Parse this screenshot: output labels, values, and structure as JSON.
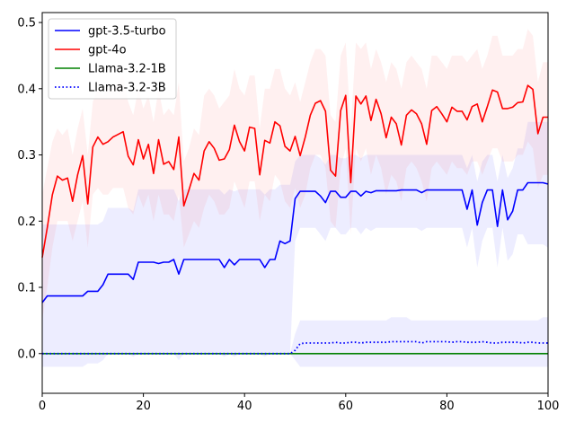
{
  "chart_data": {
    "type": "line",
    "title": "",
    "xlabel": "",
    "ylabel": "",
    "xlim": [
      0,
      100
    ],
    "ylim": [
      -0.06,
      0.515
    ],
    "xticks": [
      0,
      20,
      40,
      60,
      80,
      100
    ],
    "yticks": [
      0.0,
      0.1,
      0.2,
      0.3,
      0.4,
      0.5
    ],
    "xtick_labels": [
      "0",
      "20",
      "40",
      "60",
      "80",
      "100"
    ],
    "ytick_labels": [
      "0.0",
      "0.1",
      "0.2",
      "0.3",
      "0.4",
      "0.5"
    ],
    "grid": false,
    "legend_position": "top-left",
    "x": [
      0,
      1,
      2,
      3,
      4,
      5,
      6,
      7,
      8,
      9,
      10,
      11,
      12,
      13,
      14,
      15,
      16,
      17,
      18,
      19,
      20,
      21,
      22,
      23,
      24,
      25,
      26,
      27,
      28,
      29,
      30,
      31,
      32,
      33,
      34,
      35,
      36,
      37,
      38,
      39,
      40,
      41,
      42,
      43,
      44,
      45,
      46,
      47,
      48,
      49,
      50,
      51,
      52,
      53,
      54,
      55,
      56,
      57,
      58,
      59,
      60,
      61,
      62,
      63,
      64,
      65,
      66,
      67,
      68,
      69,
      70,
      71,
      72,
      73,
      74,
      75,
      76,
      77,
      78,
      79,
      80,
      81,
      82,
      83,
      84,
      85,
      86,
      87,
      88,
      89,
      90,
      91,
      92,
      93,
      94,
      95,
      96,
      97,
      98,
      99,
      100
    ],
    "series": [
      {
        "name": "gpt-3.5-turbo",
        "color": "#0000ff",
        "linestyle": "solid",
        "values": [
          0.077,
          0.087,
          0.087,
          0.087,
          0.087,
          0.087,
          0.087,
          0.087,
          0.087,
          0.094,
          0.094,
          0.094,
          0.104,
          0.12,
          0.12,
          0.12,
          0.12,
          0.12,
          0.112,
          0.138,
          0.138,
          0.138,
          0.138,
          0.136,
          0.138,
          0.138,
          0.142,
          0.12,
          0.142,
          0.142,
          0.142,
          0.142,
          0.142,
          0.142,
          0.142,
          0.142,
          0.13,
          0.142,
          0.134,
          0.142,
          0.142,
          0.142,
          0.142,
          0.142,
          0.13,
          0.142,
          0.142,
          0.17,
          0.166,
          0.17,
          0.234,
          0.245,
          0.245,
          0.245,
          0.245,
          0.238,
          0.228,
          0.245,
          0.245,
          0.236,
          0.236,
          0.245,
          0.245,
          0.238,
          0.245,
          0.243,
          0.246,
          0.246,
          0.246,
          0.246,
          0.246,
          0.247,
          0.247,
          0.247,
          0.247,
          0.243,
          0.247,
          0.247,
          0.247,
          0.247,
          0.247,
          0.247,
          0.247,
          0.247,
          0.218,
          0.247,
          0.194,
          0.228,
          0.247,
          0.247,
          0.192,
          0.247,
          0.202,
          0.215,
          0.247,
          0.247,
          0.258,
          0.258,
          0.258,
          0.258,
          0.256
        ],
        "lower": [
          -0.02,
          -0.02,
          -0.02,
          -0.02,
          -0.02,
          -0.02,
          -0.02,
          -0.02,
          -0.02,
          -0.015,
          -0.015,
          -0.015,
          -0.01,
          0.0,
          0.0,
          0.0,
          0.0,
          0.0,
          -0.005,
          0.0,
          0.0,
          0.0,
          0.0,
          0.0,
          0.0,
          0.0,
          0.0,
          -0.01,
          0.0,
          0.0,
          0.0,
          0.0,
          0.0,
          0.0,
          0.0,
          0.0,
          -0.005,
          0.0,
          -0.005,
          0.0,
          0.0,
          0.0,
          0.0,
          0.0,
          -0.005,
          0.0,
          0.0,
          0.0,
          0.0,
          0.0,
          0.17,
          0.19,
          0.19,
          0.19,
          0.19,
          0.18,
          0.17,
          0.19,
          0.19,
          0.18,
          0.18,
          0.19,
          0.19,
          0.18,
          0.19,
          0.185,
          0.19,
          0.19,
          0.19,
          0.19,
          0.19,
          0.19,
          0.19,
          0.19,
          0.19,
          0.185,
          0.19,
          0.19,
          0.19,
          0.19,
          0.19,
          0.19,
          0.19,
          0.19,
          0.16,
          0.19,
          0.13,
          0.17,
          0.19,
          0.19,
          0.13,
          0.19,
          0.14,
          0.15,
          0.18,
          0.18,
          0.165,
          0.165,
          0.165,
          0.165,
          0.16
        ],
        "upper": [
          0.195,
          0.195,
          0.195,
          0.195,
          0.195,
          0.195,
          0.195,
          0.195,
          0.195,
          0.195,
          0.195,
          0.195,
          0.2,
          0.22,
          0.22,
          0.22,
          0.22,
          0.22,
          0.215,
          0.248,
          0.248,
          0.248,
          0.248,
          0.248,
          0.248,
          0.248,
          0.248,
          0.23,
          0.248,
          0.248,
          0.248,
          0.248,
          0.248,
          0.248,
          0.248,
          0.248,
          0.24,
          0.248,
          0.245,
          0.248,
          0.248,
          0.248,
          0.248,
          0.248,
          0.24,
          0.248,
          0.248,
          0.255,
          0.255,
          0.255,
          0.29,
          0.3,
          0.3,
          0.3,
          0.3,
          0.295,
          0.285,
          0.3,
          0.3,
          0.295,
          0.295,
          0.3,
          0.3,
          0.295,
          0.3,
          0.3,
          0.3,
          0.3,
          0.3,
          0.3,
          0.3,
          0.3,
          0.3,
          0.3,
          0.3,
          0.3,
          0.3,
          0.3,
          0.3,
          0.3,
          0.3,
          0.3,
          0.3,
          0.3,
          0.28,
          0.3,
          0.26,
          0.29,
          0.3,
          0.3,
          0.26,
          0.3,
          0.265,
          0.28,
          0.31,
          0.31,
          0.35,
          0.35,
          0.35,
          0.35,
          0.35
        ]
      },
      {
        "name": "gpt-4o",
        "color": "#ff0000",
        "linestyle": "solid",
        "values": [
          0.145,
          0.19,
          0.24,
          0.268,
          0.262,
          0.265,
          0.23,
          0.27,
          0.299,
          0.226,
          0.312,
          0.327,
          0.316,
          0.32,
          0.327,
          0.331,
          0.335,
          0.298,
          0.285,
          0.323,
          0.294,
          0.316,
          0.272,
          0.323,
          0.286,
          0.29,
          0.278,
          0.327,
          0.223,
          0.247,
          0.272,
          0.262,
          0.306,
          0.32,
          0.31,
          0.292,
          0.294,
          0.308,
          0.345,
          0.32,
          0.306,
          0.342,
          0.34,
          0.27,
          0.322,
          0.318,
          0.35,
          0.344,
          0.313,
          0.306,
          0.328,
          0.299,
          0.327,
          0.36,
          0.378,
          0.382,
          0.366,
          0.277,
          0.268,
          0.367,
          0.39,
          0.258,
          0.389,
          0.377,
          0.389,
          0.352,
          0.384,
          0.362,
          0.326,
          0.357,
          0.347,
          0.315,
          0.36,
          0.368,
          0.362,
          0.347,
          0.316,
          0.367,
          0.373,
          0.362,
          0.35,
          0.372,
          0.366,
          0.366,
          0.353,
          0.373,
          0.377,
          0.35,
          0.373,
          0.398,
          0.395,
          0.37,
          0.37,
          0.372,
          0.379,
          0.38,
          0.405,
          0.399,
          0.332,
          0.357,
          0.357
        ],
        "lower": [
          0.05,
          0.1,
          0.16,
          0.2,
          0.2,
          0.2,
          0.17,
          0.2,
          0.23,
          0.16,
          0.24,
          0.25,
          0.24,
          0.24,
          0.25,
          0.25,
          0.25,
          0.22,
          0.21,
          0.24,
          0.22,
          0.24,
          0.2,
          0.24,
          0.21,
          0.21,
          0.2,
          0.24,
          0.16,
          0.18,
          0.2,
          0.19,
          0.22,
          0.24,
          0.23,
          0.21,
          0.21,
          0.22,
          0.26,
          0.24,
          0.22,
          0.26,
          0.26,
          0.2,
          0.24,
          0.23,
          0.27,
          0.26,
          0.23,
          0.22,
          0.25,
          0.22,
          0.24,
          0.28,
          0.3,
          0.3,
          0.28,
          0.2,
          0.19,
          0.28,
          0.31,
          0.18,
          0.31,
          0.29,
          0.31,
          0.27,
          0.3,
          0.28,
          0.24,
          0.27,
          0.26,
          0.23,
          0.28,
          0.29,
          0.28,
          0.26,
          0.23,
          0.28,
          0.29,
          0.28,
          0.27,
          0.29,
          0.28,
          0.28,
          0.27,
          0.29,
          0.29,
          0.27,
          0.29,
          0.31,
          0.31,
          0.29,
          0.29,
          0.29,
          0.3,
          0.3,
          0.32,
          0.31,
          0.25,
          0.27,
          0.27
        ],
        "upper": [
          0.24,
          0.28,
          0.32,
          0.34,
          0.33,
          0.34,
          0.3,
          0.34,
          0.37,
          0.3,
          0.38,
          0.4,
          0.39,
          0.4,
          0.4,
          0.41,
          0.42,
          0.38,
          0.36,
          0.4,
          0.37,
          0.39,
          0.35,
          0.4,
          0.36,
          0.37,
          0.36,
          0.41,
          0.29,
          0.31,
          0.34,
          0.33,
          0.39,
          0.4,
          0.39,
          0.37,
          0.38,
          0.39,
          0.43,
          0.4,
          0.39,
          0.42,
          0.42,
          0.34,
          0.4,
          0.4,
          0.43,
          0.43,
          0.4,
          0.39,
          0.41,
          0.38,
          0.41,
          0.44,
          0.46,
          0.46,
          0.45,
          0.36,
          0.35,
          0.45,
          0.47,
          0.34,
          0.47,
          0.46,
          0.47,
          0.43,
          0.46,
          0.44,
          0.41,
          0.44,
          0.43,
          0.4,
          0.44,
          0.45,
          0.44,
          0.43,
          0.4,
          0.45,
          0.45,
          0.44,
          0.43,
          0.45,
          0.45,
          0.45,
          0.44,
          0.45,
          0.46,
          0.43,
          0.45,
          0.48,
          0.48,
          0.45,
          0.45,
          0.45,
          0.46,
          0.46,
          0.49,
          0.48,
          0.41,
          0.44,
          0.44
        ]
      },
      {
        "name": "Llama-3.2-1B",
        "color": "#008000",
        "linestyle": "solid",
        "values": [
          0,
          0,
          0,
          0,
          0,
          0,
          0,
          0,
          0,
          0,
          0,
          0,
          0,
          0,
          0,
          0,
          0,
          0,
          0,
          0,
          0,
          0,
          0,
          0,
          0,
          0,
          0,
          0,
          0,
          0,
          0,
          0,
          0,
          0,
          0,
          0,
          0,
          0,
          0,
          0,
          0,
          0,
          0,
          0,
          0,
          0,
          0,
          0,
          0,
          0,
          0,
          0,
          0,
          0,
          0,
          0,
          0,
          0,
          0,
          0,
          0,
          0,
          0,
          0,
          0,
          0,
          0,
          0,
          0,
          0,
          0,
          0,
          0,
          0,
          0,
          0,
          0,
          0,
          0,
          0,
          0,
          0,
          0,
          0,
          0,
          0,
          0,
          0,
          0,
          0,
          0,
          0,
          0,
          0,
          0,
          0,
          0,
          0,
          0,
          0,
          0
        ]
      },
      {
        "name": "Llama-3.2-3B",
        "color": "#0000ff",
        "linestyle": "dotted",
        "values": [
          0,
          0,
          0,
          0,
          0,
          0,
          0,
          0,
          0,
          0,
          0,
          0,
          0,
          0,
          0,
          0,
          0,
          0,
          0,
          0,
          0,
          0,
          0,
          0,
          0,
          0,
          0,
          0,
          0,
          0,
          0,
          0,
          0,
          0,
          0,
          0,
          0,
          0,
          0,
          0,
          0,
          0,
          0,
          0,
          0,
          0,
          0,
          0,
          0,
          0,
          0.005,
          0.015,
          0.016,
          0.016,
          0.016,
          0.016,
          0.016,
          0.016,
          0.017,
          0.016,
          0.016,
          0.017,
          0.017,
          0.016,
          0.017,
          0.017,
          0.017,
          0.017,
          0.017,
          0.018,
          0.018,
          0.018,
          0.018,
          0.018,
          0.018,
          0.016,
          0.018,
          0.018,
          0.018,
          0.018,
          0.018,
          0.017,
          0.018,
          0.018,
          0.017,
          0.017,
          0.017,
          0.018,
          0.017,
          0.016,
          0.016,
          0.017,
          0.017,
          0.017,
          0.017,
          0.016,
          0.017,
          0.017,
          0.016,
          0.016,
          0.016
        ],
        "lower": [
          0,
          0,
          0,
          0,
          0,
          0,
          0,
          0,
          0,
          0,
          0,
          0,
          0,
          0,
          0,
          0,
          0,
          0,
          0,
          0,
          0,
          0,
          0,
          0,
          0,
          0,
          0,
          0,
          0,
          0,
          0,
          0,
          0,
          0,
          0,
          0,
          0,
          0,
          0,
          0,
          0,
          0,
          0,
          0,
          0,
          0,
          0,
          0,
          0,
          0,
          -0.01,
          -0.02,
          -0.02,
          -0.02,
          -0.02,
          -0.02,
          -0.02,
          -0.02,
          -0.02,
          -0.02,
          -0.02,
          -0.02,
          -0.02,
          -0.02,
          -0.02,
          -0.02,
          -0.02,
          -0.02,
          -0.02,
          -0.02,
          -0.02,
          -0.02,
          -0.02,
          -0.02,
          -0.02,
          -0.02,
          -0.02,
          -0.02,
          -0.02,
          -0.02,
          -0.02,
          -0.02,
          -0.02,
          -0.02,
          -0.02,
          -0.02,
          -0.02,
          -0.02,
          -0.02,
          -0.02,
          -0.02,
          -0.02,
          -0.02,
          -0.02,
          -0.02,
          -0.02,
          -0.02,
          -0.02,
          -0.02,
          -0.02,
          -0.02
        ],
        "upper": [
          0,
          0,
          0,
          0,
          0,
          0,
          0,
          0,
          0,
          0,
          0,
          0,
          0,
          0,
          0,
          0,
          0,
          0,
          0,
          0,
          0,
          0,
          0,
          0,
          0,
          0,
          0,
          0,
          0,
          0,
          0,
          0,
          0,
          0,
          0,
          0,
          0,
          0,
          0,
          0,
          0,
          0,
          0,
          0,
          0,
          0,
          0,
          0,
          0,
          0,
          0.03,
          0.05,
          0.05,
          0.05,
          0.05,
          0.05,
          0.05,
          0.05,
          0.05,
          0.05,
          0.05,
          0.05,
          0.05,
          0.05,
          0.05,
          0.05,
          0.05,
          0.05,
          0.05,
          0.055,
          0.055,
          0.055,
          0.055,
          0.05,
          0.05,
          0.05,
          0.05,
          0.05,
          0.05,
          0.05,
          0.05,
          0.05,
          0.05,
          0.05,
          0.05,
          0.05,
          0.05,
          0.05,
          0.05,
          0.05,
          0.05,
          0.05,
          0.05,
          0.05,
          0.05,
          0.05,
          0.05,
          0.05,
          0.05,
          0.055,
          0.055
        ]
      }
    ]
  }
}
